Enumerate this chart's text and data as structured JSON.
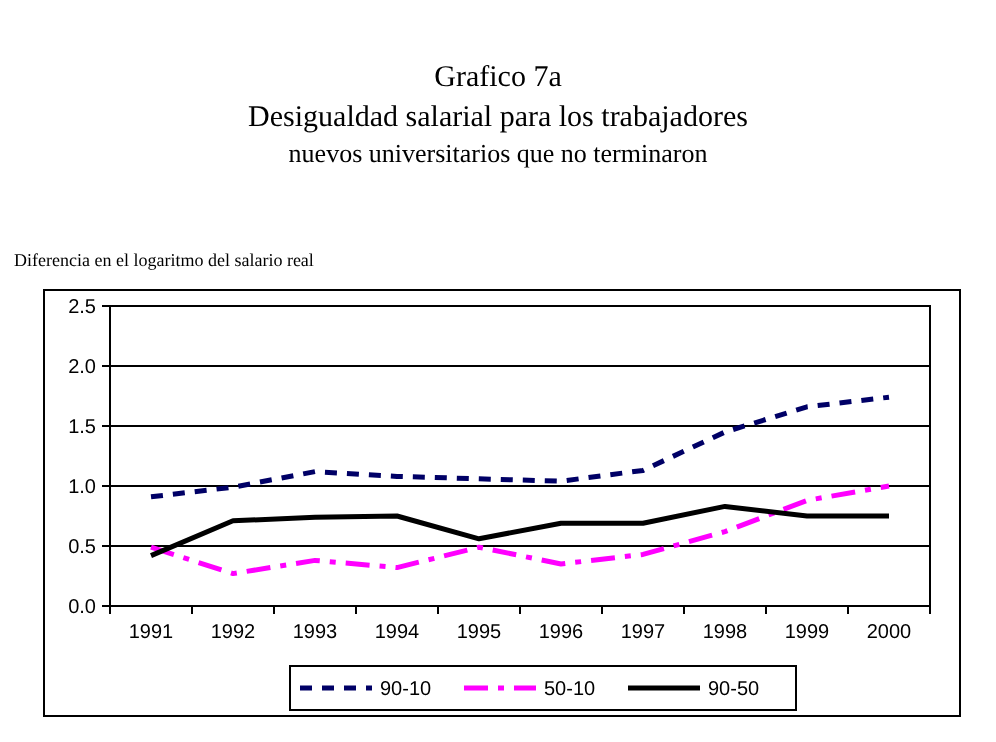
{
  "chart_data": {
    "type": "line",
    "title": "Grafico 7a",
    "subtitle": "Desigualdad salarial para los trabajadores nuevos universitarios que no terminaron",
    "ylabel": "Diferencia en el logaritmo del salario real",
    "categories": [
      "1991",
      "1992",
      "1993",
      "1994",
      "1995",
      "1996",
      "1997",
      "1998",
      "1999",
      "2000"
    ],
    "series": [
      {
        "name": "90-10",
        "color": "#000066",
        "line_style": "dashed",
        "values": [
          0.91,
          0.99,
          1.12,
          1.08,
          1.06,
          1.04,
          1.13,
          1.45,
          1.66,
          1.74
        ]
      },
      {
        "name": "50-10",
        "color": "#ff00ff",
        "line_style": "dashed",
        "values": [
          0.49,
          0.27,
          0.38,
          0.32,
          0.49,
          0.35,
          0.43,
          0.62,
          0.88,
          1.0
        ]
      },
      {
        "name": "90-50",
        "color": "#000000",
        "line_style": "solid",
        "values": [
          0.42,
          0.71,
          0.74,
          0.75,
          0.56,
          0.69,
          0.69,
          0.83,
          0.75,
          0.75
        ]
      }
    ],
    "ylim": [
      0,
      2.5
    ],
    "yticks": [
      {
        "value": 0,
        "label": "0.0"
      },
      {
        "value": 0.5,
        "label": "0.5"
      },
      {
        "value": 1,
        "label": "1.0"
      },
      {
        "value": 1.5,
        "label": "1.5"
      },
      {
        "value": 2,
        "label": "2.0"
      },
      {
        "value": 2.5,
        "label": "2.5"
      }
    ],
    "grid": "y",
    "legend": "bottom"
  }
}
